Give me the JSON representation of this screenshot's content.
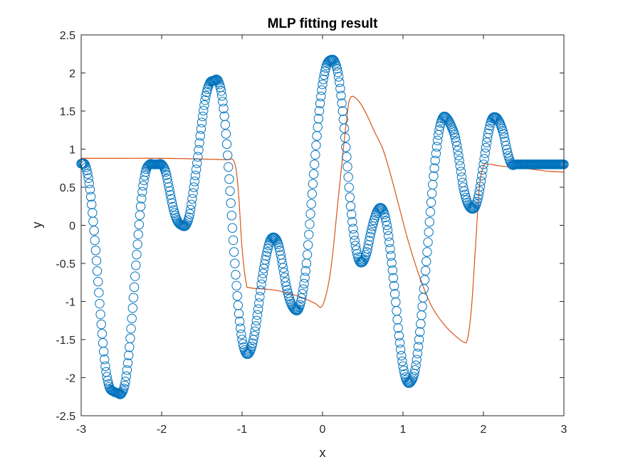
{
  "chart_data": {
    "type": "scatter",
    "title": "MLP fitting result",
    "xlabel": "x",
    "ylabel": "y",
    "xlim": [
      -3,
      3
    ],
    "ylim": [
      -2.5,
      2.5
    ],
    "xticks": [
      -3,
      -2,
      -1,
      0,
      1,
      2,
      3
    ],
    "xtick_labels": [
      "-3",
      "-2",
      "-1",
      "0",
      "1",
      "2",
      "3"
    ],
    "yticks": [
      -2.5,
      -2,
      -1.5,
      -1,
      -0.5,
      0,
      0.5,
      1,
      1.5,
      2,
      2.5
    ],
    "ytick_labels": [
      "-2.5",
      "-2",
      "-1.5",
      "-1",
      "-0.5",
      "0",
      "0.5",
      "1",
      "1.5",
      "2",
      "2.5"
    ],
    "grid": false,
    "series": [
      {
        "style": "circle-markers",
        "color": "#0072BD",
        "x": [
          -3.0,
          -2.95,
          -2.9,
          -2.85,
          -2.8,
          -2.75,
          -2.7,
          -2.65,
          -2.6,
          -2.55,
          -2.5,
          -2.45,
          -2.4,
          -2.35,
          -2.3,
          -2.25,
          -2.2,
          -2.15,
          -2.1,
          -2.05,
          -2.0,
          -1.95,
          -1.9,
          -1.85,
          -1.8,
          -1.75,
          -1.7,
          -1.65,
          -1.6,
          -1.55,
          -1.5,
          -1.45,
          -1.4,
          -1.35,
          -1.3,
          -1.25,
          -1.2,
          -1.15,
          -1.1,
          -1.05,
          -1.0,
          -0.95,
          -0.9,
          -0.85,
          -0.8,
          -0.75,
          -0.7,
          -0.65,
          -0.6,
          -0.55,
          -0.5,
          -0.45,
          -0.4,
          -0.35,
          -0.3,
          -0.25,
          -0.2,
          -0.15,
          -0.1,
          -0.05,
          0.0,
          0.05,
          0.1,
          0.15,
          0.2,
          0.25,
          0.3,
          0.35,
          0.4,
          0.45,
          0.5,
          0.55,
          0.6,
          0.65,
          0.7,
          0.75,
          0.8,
          0.85,
          0.9,
          0.95,
          1.0,
          1.05,
          1.1,
          1.15,
          1.2,
          1.25,
          1.3,
          1.35,
          1.4,
          1.45,
          1.5,
          1.55,
          1.6,
          1.65,
          1.7,
          1.75,
          1.8,
          1.85,
          1.9,
          1.95,
          2.0,
          2.05,
          2.1,
          2.15,
          2.2,
          2.25,
          2.3,
          2.35,
          2.4,
          2.45,
          2.5,
          2.55,
          2.6,
          2.65,
          2.7,
          2.75,
          2.8,
          2.85,
          2.9,
          2.95,
          3.0
        ],
        "y": [
          0.81,
          0.79,
          0.55,
          0.05,
          -0.6,
          -1.3,
          -1.85,
          -2.12,
          -2.18,
          -2.2,
          -2.21,
          -2.05,
          -1.6,
          -0.95,
          -0.25,
          0.35,
          0.7,
          0.8,
          0.8,
          0.8,
          0.8,
          0.7,
          0.45,
          0.2,
          0.05,
          0.0,
          0.0,
          0.15,
          0.5,
          0.9,
          1.35,
          1.7,
          1.87,
          1.9,
          1.9,
          1.7,
          1.2,
          0.45,
          -0.35,
          -1.05,
          -1.5,
          -1.68,
          -1.65,
          -1.45,
          -1.1,
          -0.7,
          -0.4,
          -0.2,
          -0.16,
          -0.25,
          -0.5,
          -0.8,
          -1.0,
          -1.1,
          -1.1,
          -0.9,
          -0.5,
          0.15,
          0.8,
          1.4,
          1.85,
          2.1,
          2.17,
          2.15,
          1.95,
          1.5,
          0.9,
          0.25,
          -0.2,
          -0.45,
          -0.48,
          -0.35,
          -0.1,
          0.1,
          0.22,
          0.2,
          0.0,
          -0.4,
          -0.9,
          -1.45,
          -1.85,
          -2.05,
          -2.05,
          -1.9,
          -1.5,
          -0.95,
          -0.35,
          0.3,
          0.85,
          1.25,
          1.42,
          1.4,
          1.3,
          1.15,
          0.85,
          0.5,
          0.3,
          0.22,
          0.25,
          0.45,
          0.8,
          1.15,
          1.38,
          1.42,
          1.35,
          1.2,
          0.95,
          0.8,
          0.8,
          0.8,
          0.8,
          0.8,
          0.8,
          0.8,
          0.8,
          0.8,
          0.8,
          0.8,
          0.8,
          0.8,
          0.8
        ]
      },
      {
        "style": "line",
        "color": "#D95319",
        "x": [
          -3.0,
          -2.5,
          -2.0,
          -1.5,
          -1.2,
          -1.1,
          -1.05,
          -1.0,
          -0.95,
          -0.9,
          -0.6,
          -0.3,
          -0.1,
          0.0,
          0.1,
          0.2,
          0.3,
          0.35,
          0.45,
          0.55,
          0.65,
          0.75,
          0.85,
          0.95,
          1.05,
          1.15,
          1.25,
          1.35,
          1.45,
          1.55,
          1.65,
          1.75,
          1.8,
          1.85,
          1.9,
          1.95,
          2.0,
          2.05,
          2.1,
          2.2,
          2.5,
          2.8,
          3.0
        ],
        "y": [
          0.88,
          0.88,
          0.88,
          0.87,
          0.86,
          0.84,
          0.5,
          -0.3,
          -0.75,
          -0.82,
          -0.85,
          -0.93,
          -1.02,
          -1.05,
          -0.6,
          0.4,
          1.4,
          1.68,
          1.63,
          1.45,
          1.22,
          1.0,
          0.65,
          0.25,
          -0.15,
          -0.5,
          -0.8,
          -1.05,
          -1.22,
          -1.35,
          -1.45,
          -1.53,
          -1.5,
          -1.1,
          -0.3,
          0.5,
          0.78,
          0.8,
          0.8,
          0.78,
          0.75,
          0.71,
          0.7
        ]
      }
    ]
  }
}
